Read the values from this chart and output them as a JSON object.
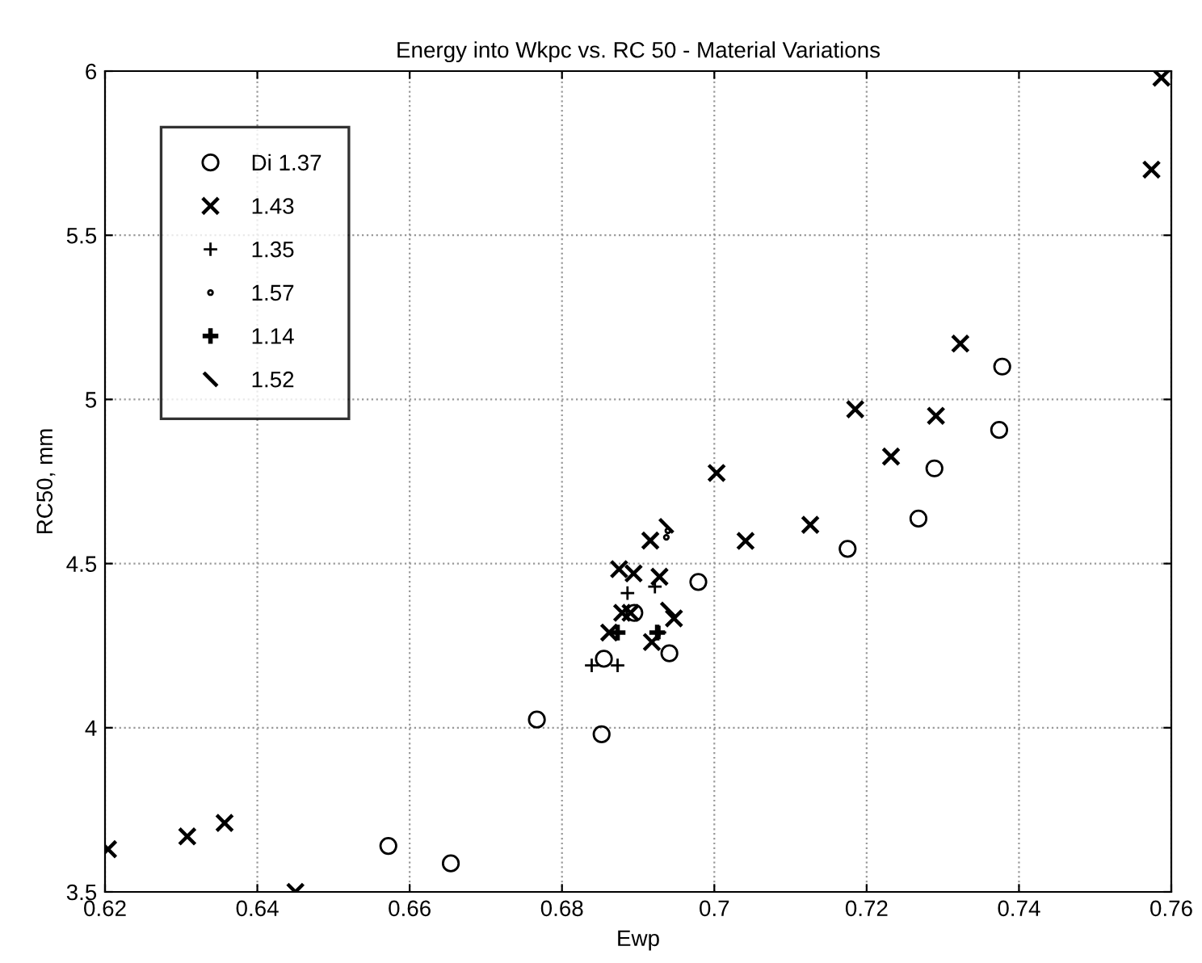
{
  "chart_data": {
    "type": "scatter",
    "title": "Energy into Wkpc vs. RC 50 - Material Variations",
    "xlabel": "Ewp",
    "ylabel": "RC50, mm",
    "xlim": [
      0.62,
      0.76
    ],
    "xticks": [
      0.62,
      0.64,
      0.66,
      0.68,
      0.7,
      0.72,
      0.74,
      0.76
    ],
    "ylim": [
      3.5,
      6
    ],
    "yticks": [
      3.5,
      4,
      4.5,
      5,
      5.5,
      6
    ],
    "grid": true,
    "legend": "top left",
    "series": [
      {
        "name": "Di 1.37",
        "color": "#000000",
        "marker": "circle",
        "x": [
          0.6572,
          0.6654,
          0.6767,
          0.6852,
          0.6855,
          0.6941,
          0.6979,
          0.6895,
          0.7175,
          0.7268,
          0.7289,
          0.7374,
          0.7378
        ],
        "values": [
          3.64,
          3.587,
          4.025,
          3.98,
          4.21,
          4.227,
          4.444,
          4.35,
          4.545,
          4.637,
          4.79,
          4.907,
          5.1
        ]
      },
      {
        "name": "1.43",
        "color": "#000000",
        "marker": "cross",
        "x": [
          0.6204,
          0.6308,
          0.6357,
          0.645,
          0.6875,
          0.6894,
          0.6928,
          0.6879,
          0.689,
          0.6947,
          0.6918,
          0.6862,
          0.6916,
          0.7003,
          0.7041,
          0.7126,
          0.7185,
          0.7232,
          0.7291,
          0.7323,
          0.7574,
          0.7587
        ],
        "values": [
          3.63,
          3.669,
          3.71,
          3.5,
          4.483,
          4.47,
          4.46,
          4.35,
          4.35,
          4.333,
          4.261,
          4.29,
          4.57,
          4.776,
          4.569,
          4.618,
          4.97,
          4.826,
          4.95,
          5.17,
          5.7,
          5.98
        ]
      },
      {
        "name": "1.35",
        "color": "#000000",
        "x": [
          0.6839,
          0.6873,
          0.6886,
          0.6922,
          0.6928
        ],
        "values": [
          4.19,
          4.19,
          4.41,
          4.43,
          4.29
        ]
      },
      {
        "name": "1.57",
        "color": "#000000",
        "x": [
          0.6937,
          0.6939
        ],
        "values": [
          4.58,
          4.6
        ]
      },
      {
        "name": "1.14",
        "color": "#000000",
        "x": [
          0.6873,
          0.6925
        ],
        "values": [
          4.29,
          4.29
        ]
      },
      {
        "name": "1.52",
        "color": "#000000",
        "x": [
          0.6939,
          0.6937
        ],
        "values": [
          4.36,
          4.615
        ]
      }
    ]
  }
}
